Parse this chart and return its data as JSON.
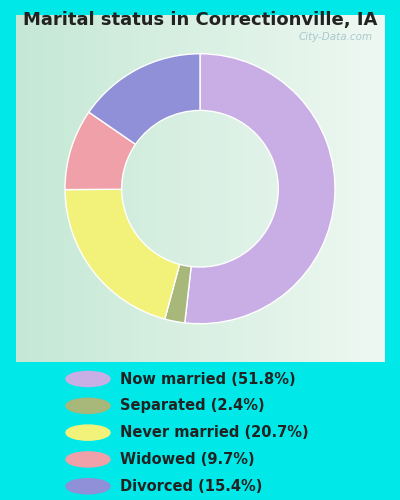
{
  "title": "Marital status in Correctionville, IA",
  "slices": [
    51.8,
    2.4,
    20.7,
    9.7,
    15.4
  ],
  "labels": [
    "Now married (51.8%)",
    "Separated (2.4%)",
    "Never married (20.7%)",
    "Widowed (9.7%)",
    "Divorced (15.4%)"
  ],
  "colors": [
    "#c9aee5",
    "#a8b87a",
    "#f2f27a",
    "#f0a0a8",
    "#9090d8"
  ],
  "bg_color": "#00e8e8",
  "title_color": "#222222",
  "title_fontsize": 13,
  "legend_fontsize": 10.5,
  "donut_width": 0.42,
  "watermark": "City-Data.com",
  "chart_bg_left": "#c5e8d5",
  "chart_bg_right": "#e8f5ee"
}
